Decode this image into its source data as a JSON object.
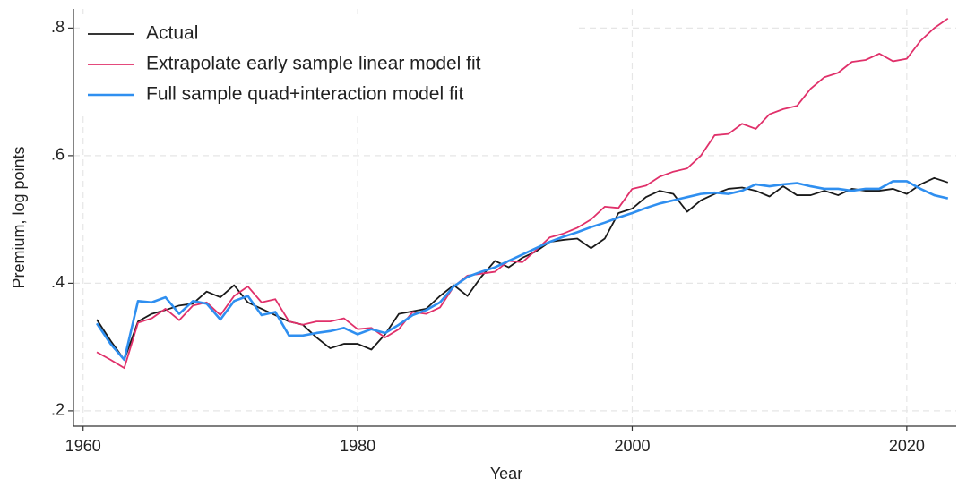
{
  "chart_data": {
    "type": "line",
    "x_label": "Year",
    "y_label": "Premium, log points",
    "x": [
      1961,
      1962,
      1963,
      1964,
      1965,
      1966,
      1967,
      1968,
      1969,
      1970,
      1971,
      1972,
      1973,
      1974,
      1975,
      1976,
      1977,
      1978,
      1979,
      1980,
      1981,
      1982,
      1983,
      1984,
      1985,
      1986,
      1987,
      1988,
      1989,
      1990,
      1991,
      1992,
      1993,
      1994,
      1995,
      1996,
      1997,
      1998,
      1999,
      2000,
      2001,
      2002,
      2003,
      2004,
      2005,
      2006,
      2007,
      2008,
      2009,
      2010,
      2011,
      2012,
      2013,
      2014,
      2015,
      2016,
      2017,
      2018,
      2019,
      2020,
      2021,
      2022,
      2023
    ],
    "series": [
      {
        "name": "Actual",
        "color": "#1a1a1a",
        "values": [
          0.343,
          0.31,
          0.28,
          0.34,
          0.352,
          0.358,
          0.365,
          0.368,
          0.387,
          0.378,
          0.397,
          0.37,
          0.36,
          0.35,
          0.34,
          0.335,
          0.315,
          0.298,
          0.305,
          0.305,
          0.296,
          0.32,
          0.352,
          0.356,
          0.36,
          0.38,
          0.397,
          0.38,
          0.41,
          0.435,
          0.425,
          0.44,
          0.45,
          0.465,
          0.468,
          0.47,
          0.455,
          0.47,
          0.51,
          0.517,
          0.535,
          0.545,
          0.54,
          0.512,
          0.53,
          0.54,
          0.548,
          0.55,
          0.545,
          0.536,
          0.552,
          0.538,
          0.538,
          0.545,
          0.538,
          0.548,
          0.545,
          0.545,
          0.548,
          0.54,
          0.555,
          0.565,
          0.558
        ]
      },
      {
        "name": "Extrapolate early sample linear model fit",
        "color": "#e0306a",
        "values": [
          0.292,
          0.28,
          0.267,
          0.338,
          0.345,
          0.36,
          0.342,
          0.365,
          0.37,
          0.35,
          0.38,
          0.395,
          0.37,
          0.375,
          0.34,
          0.335,
          0.34,
          0.34,
          0.345,
          0.328,
          0.33,
          0.315,
          0.328,
          0.355,
          0.352,
          0.362,
          0.395,
          0.412,
          0.415,
          0.418,
          0.435,
          0.433,
          0.452,
          0.472,
          0.478,
          0.487,
          0.5,
          0.52,
          0.518,
          0.548,
          0.553,
          0.567,
          0.575,
          0.58,
          0.6,
          0.632,
          0.634,
          0.65,
          0.642,
          0.665,
          0.673,
          0.678,
          0.705,
          0.723,
          0.73,
          0.747,
          0.75,
          0.76,
          0.748,
          0.752,
          0.78,
          0.8,
          0.815
        ]
      },
      {
        "name": "Full sample quad+interaction model fit",
        "color": "#2f8ff0",
        "values": [
          0.337,
          0.305,
          0.28,
          0.372,
          0.37,
          0.378,
          0.352,
          0.372,
          0.368,
          0.343,
          0.372,
          0.38,
          0.35,
          0.355,
          0.318,
          0.318,
          0.322,
          0.325,
          0.33,
          0.32,
          0.328,
          0.322,
          0.335,
          0.35,
          0.358,
          0.37,
          0.395,
          0.41,
          0.418,
          0.425,
          0.435,
          0.445,
          0.455,
          0.465,
          0.473,
          0.48,
          0.488,
          0.495,
          0.503,
          0.51,
          0.518,
          0.525,
          0.53,
          0.535,
          0.54,
          0.542,
          0.54,
          0.545,
          0.555,
          0.552,
          0.555,
          0.557,
          0.552,
          0.548,
          0.548,
          0.545,
          0.548,
          0.548,
          0.56,
          0.56,
          0.548,
          0.538,
          0.533
        ]
      }
    ],
    "xlim": [
      1959.3,
      2023.6
    ],
    "ylim": [
      0.176,
      0.83
    ],
    "xticks": [
      1960,
      1980,
      2000,
      2020
    ],
    "yticks": [
      {
        "value": 0.2,
        "label": ".2"
      },
      {
        "value": 0.4,
        "label": ".4"
      },
      {
        "value": 0.6,
        "label": ".6"
      },
      {
        "value": 0.8,
        "label": ".8"
      }
    ],
    "grid": true,
    "legend": "upper left"
  }
}
